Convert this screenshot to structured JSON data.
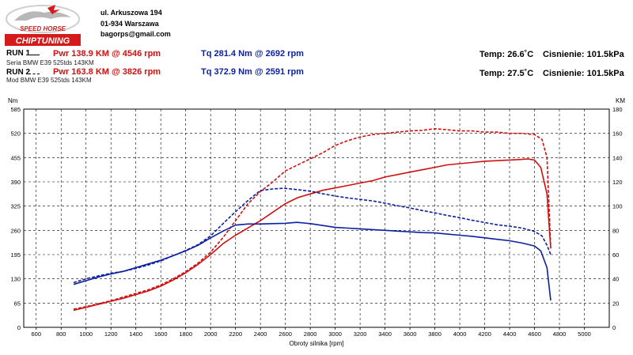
{
  "header": {
    "logo": {
      "top_text": "SPEED HORSE",
      "bottom_text": "CHIPTUNING",
      "colors": {
        "red": "#d41a1a",
        "black": "#111111"
      }
    },
    "address": [
      "ul. Arkuszowa 194",
      "01-934 Warszawa",
      "bagorps@gmail.com"
    ]
  },
  "runs": [
    {
      "label": "RUN 1",
      "car": "Seria BMW E39 525tds 143KM",
      "power": "Pwr  138.9 KM @ 4546 rpm",
      "torque": "Tq  281.4 Nm @ 2692 rpm",
      "temp": "Temp: 26.6˚C",
      "pressure": "Cisnienie: 101.5kPa"
    },
    {
      "label": "RUN 2",
      "car": "Mod BMW E39 525tds 143KM",
      "power": "Pwr  163.8 KM @ 3826 rpm",
      "torque": "Tq  372.9 Nm @ 2591 rpm",
      "temp": "Temp: 27.5˚C",
      "pressure": "Cisnienie: 101.5kPa"
    }
  ],
  "chart_data": {
    "type": "line",
    "xlabel": "Obroty silnika [rpm]",
    "ylabel_left": "Nm",
    "ylabel_right": "KM",
    "xlim": [
      500,
      5200
    ],
    "xticks": [
      600,
      800,
      1000,
      1200,
      1400,
      1600,
      1800,
      2000,
      2200,
      2400,
      2600,
      2800,
      3000,
      3200,
      3400,
      3600,
      3800,
      4000,
      4200,
      4400,
      4600,
      4800,
      5000
    ],
    "ylim_left": [
      0,
      585
    ],
    "yticks_left": [
      0,
      65,
      130,
      195,
      260,
      325,
      390,
      455,
      520,
      585
    ],
    "ylim_right": [
      0,
      180
    ],
    "yticks_right": [
      0,
      20,
      40,
      60,
      80,
      100,
      120,
      140,
      160,
      180
    ],
    "grid": true,
    "colors": {
      "power": "#d01010",
      "torque": "#0c1fa0"
    },
    "series": [
      {
        "run": "RUN 1",
        "quantity": "power",
        "axis": "right",
        "style": "solid",
        "x": [
          900,
          1000,
          1100,
          1200,
          1300,
          1400,
          1500,
          1600,
          1700,
          1800,
          1900,
          2000,
          2100,
          2200,
          2300,
          2400,
          2500,
          2600,
          2700,
          2800,
          2900,
          3000,
          3100,
          3200,
          3300,
          3400,
          3500,
          3600,
          3700,
          3800,
          3900,
          4000,
          4100,
          4200,
          4300,
          4400,
          4500,
          4546,
          4600,
          4650,
          4700,
          4730
        ],
        "y": [
          14,
          16.5,
          19,
          21.5,
          24,
          27,
          30,
          34,
          39,
          45,
          52,
          60,
          69,
          76,
          82,
          88,
          95,
          102,
          107,
          110,
          113,
          115,
          117,
          119,
          121,
          124,
          126,
          128,
          130,
          132,
          134,
          135,
          136,
          137,
          137.5,
          138,
          138.5,
          138.9,
          138,
          132,
          110,
          65
        ]
      },
      {
        "run": "RUN 2",
        "quantity": "power",
        "axis": "right",
        "style": "dashed",
        "x": [
          900,
          1000,
          1100,
          1200,
          1300,
          1400,
          1500,
          1600,
          1700,
          1800,
          1900,
          2000,
          2100,
          2200,
          2300,
          2400,
          2500,
          2600,
          2700,
          2800,
          2900,
          3000,
          3100,
          3200,
          3300,
          3400,
          3500,
          3600,
          3700,
          3800,
          3900,
          4000,
          4100,
          4200,
          4300,
          4400,
          4500,
          4600,
          4660,
          4700,
          4730
        ],
        "y": [
          15,
          17,
          19.5,
          22,
          25,
          28,
          31,
          35,
          40,
          46,
          53,
          62,
          74,
          88,
          102,
          112,
          120,
          129,
          134,
          139,
          144,
          150,
          154,
          157,
          159,
          160,
          161,
          162,
          162.5,
          163.8,
          163,
          162,
          162,
          161,
          161,
          160,
          160,
          159,
          155,
          140,
          66
        ]
      },
      {
        "run": "RUN 1",
        "quantity": "torque",
        "axis": "left",
        "style": "solid",
        "x": [
          900,
          1000,
          1100,
          1200,
          1300,
          1400,
          1500,
          1600,
          1700,
          1800,
          1900,
          2000,
          2100,
          2200,
          2300,
          2400,
          2500,
          2600,
          2692,
          2800,
          2900,
          3000,
          3100,
          3200,
          3300,
          3400,
          3500,
          3600,
          3700,
          3800,
          3900,
          4000,
          4100,
          4200,
          4300,
          4400,
          4500,
          4600,
          4650,
          4700,
          4730
        ],
        "y": [
          115,
          125,
          135,
          143,
          150,
          160,
          170,
          180,
          192,
          205,
          220,
          240,
          258,
          274,
          277,
          277,
          278,
          279,
          281.4,
          278,
          273,
          268,
          266,
          264,
          262,
          260,
          258,
          256,
          254,
          253,
          250,
          247,
          244,
          240,
          236,
          232,
          226,
          218,
          205,
          160,
          72
        ]
      },
      {
        "run": "RUN 2",
        "quantity": "torque",
        "axis": "left",
        "style": "dashed",
        "x": [
          900,
          1000,
          1100,
          1200,
          1300,
          1400,
          1500,
          1600,
          1700,
          1800,
          1900,
          2000,
          2100,
          2200,
          2300,
          2400,
          2500,
          2591,
          2700,
          2800,
          2900,
          3000,
          3100,
          3200,
          3300,
          3400,
          3500,
          3600,
          3700,
          3800,
          3900,
          4000,
          4100,
          4200,
          4300,
          4400,
          4500,
          4600,
          4660,
          4700,
          4730
        ],
        "y": [
          120,
          130,
          138,
          145,
          150,
          158,
          167,
          178,
          192,
          206,
          222,
          245,
          278,
          310,
          340,
          367,
          371,
          372.9,
          369,
          365,
          358,
          352,
          347,
          343,
          339,
          333,
          326,
          320,
          313,
          307,
          300,
          294,
          287,
          281,
          275,
          271,
          266,
          257,
          245,
          220,
          195
        ]
      }
    ]
  }
}
